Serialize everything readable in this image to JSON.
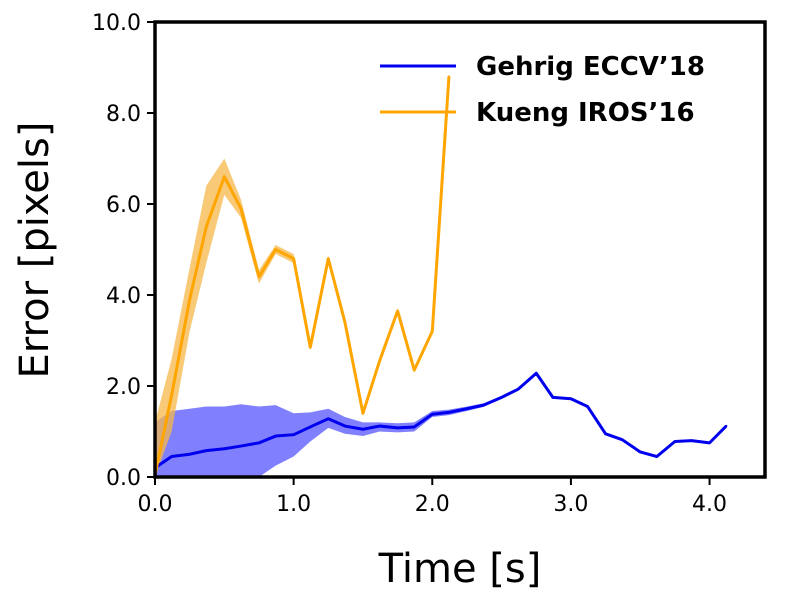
{
  "chart_data": {
    "type": "line",
    "xlabel": "Time [s]",
    "ylabel": "Error [pixels]",
    "xlim": [
      0,
      4.4
    ],
    "ylim": [
      0,
      10
    ],
    "xticks": [
      {
        "value": 0,
        "label": "0.0"
      },
      {
        "value": 1,
        "label": "1.0"
      },
      {
        "value": 2,
        "label": "2.0"
      },
      {
        "value": 3,
        "label": "3.0"
      },
      {
        "value": 4,
        "label": "4.0"
      }
    ],
    "yticks": [
      {
        "value": 0,
        "label": "0.0"
      },
      {
        "value": 2,
        "label": "2.0"
      },
      {
        "value": 4,
        "label": "4.0"
      },
      {
        "value": 6,
        "label": "6.0"
      },
      {
        "value": 8,
        "label": "8.0"
      },
      {
        "value": 10,
        "label": "10.0"
      }
    ],
    "legend_position": "top-right",
    "grid": false,
    "series": [
      {
        "name": "Gehrig ECCV’18",
        "color": "#0000ee",
        "band_color": "#5555ff",
        "x": [
          0.0,
          0.12,
          0.25,
          0.37,
          0.5,
          0.62,
          0.75,
          0.87,
          1.0,
          1.12,
          1.25,
          1.37,
          1.5,
          1.62,
          1.75,
          1.87,
          2.0,
          2.12,
          2.25,
          2.37,
          2.5,
          2.62,
          2.75,
          2.87,
          3.0,
          3.12,
          3.25,
          3.37,
          3.5,
          3.62,
          3.75,
          3.87,
          4.0,
          4.12
        ],
        "values": [
          0.2,
          0.45,
          0.5,
          0.58,
          0.62,
          0.68,
          0.75,
          0.9,
          0.93,
          1.1,
          1.28,
          1.12,
          1.05,
          1.12,
          1.08,
          1.1,
          1.38,
          1.42,
          1.5,
          1.58,
          1.75,
          1.93,
          2.28,
          1.75,
          1.72,
          1.55,
          0.95,
          0.82,
          0.55,
          0.45,
          0.78,
          0.8,
          0.75,
          1.12
        ],
        "upper": [
          1.2,
          1.45,
          1.5,
          1.55,
          1.55,
          1.6,
          1.55,
          1.58,
          1.4,
          1.42,
          1.5,
          1.32,
          1.2,
          1.2,
          1.18,
          1.2,
          1.45,
          1.48,
          1.55,
          1.62,
          1.78,
          1.95,
          2.3,
          1.77,
          1.74,
          1.57,
          0.97,
          0.84,
          0.57,
          0.47,
          0.8,
          0.82,
          0.77,
          1.14
        ],
        "lower": [
          0.0,
          0.0,
          0.0,
          0.0,
          0.0,
          0.0,
          0.0,
          0.25,
          0.45,
          0.78,
          1.08,
          0.95,
          0.9,
          1.0,
          0.98,
          1.0,
          1.32,
          1.36,
          1.45,
          1.54,
          1.72,
          1.91,
          2.26,
          1.73,
          1.7,
          1.53,
          0.93,
          0.8,
          0.53,
          0.43,
          0.76,
          0.78,
          0.73,
          1.1
        ]
      },
      {
        "name": "Kueng IROS’16",
        "color": "#ffa500",
        "band_color": "#f5b84a",
        "x": [
          0.0,
          0.12,
          0.25,
          0.37,
          0.5,
          0.62,
          0.75,
          0.87,
          1.0,
          1.12,
          1.25,
          1.37,
          1.5,
          1.62,
          1.75,
          1.87,
          2.0,
          2.12
        ],
        "values": [
          0.05,
          1.8,
          3.9,
          5.5,
          6.6,
          5.9,
          4.4,
          5.0,
          4.8,
          2.85,
          4.8,
          3.4,
          1.4,
          2.55,
          3.65,
          2.35,
          3.2,
          8.8
        ],
        "upper": [
          1.2,
          2.6,
          4.6,
          6.4,
          7.0,
          6.1,
          4.55,
          5.1,
          4.9,
          2.9,
          4.85,
          3.45,
          1.45,
          2.6,
          3.7,
          2.4,
          3.25,
          8.85
        ],
        "lower": [
          0.0,
          1.0,
          3.2,
          4.7,
          6.2,
          5.7,
          4.25,
          4.9,
          4.7,
          2.8,
          4.75,
          3.35,
          1.35,
          2.5,
          3.6,
          2.3,
          3.15,
          8.75
        ]
      }
    ]
  }
}
